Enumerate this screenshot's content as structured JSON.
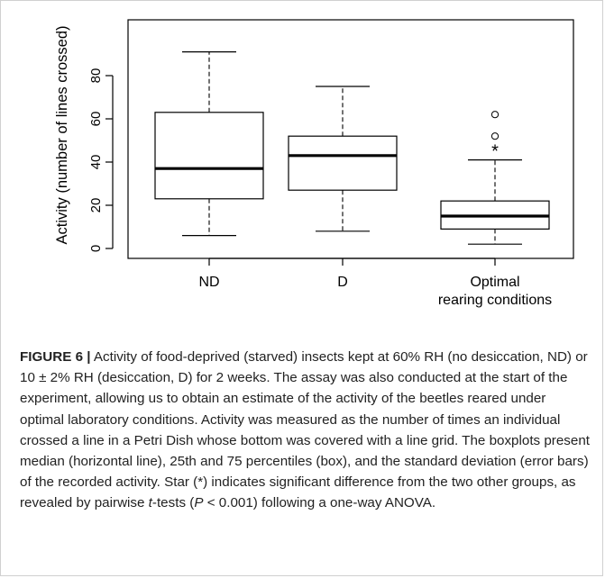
{
  "chart_data": {
    "type": "boxplot",
    "ylabel": "Activity (number of lines crossed)",
    "ylim": [
      0,
      95
    ],
    "yticks": [
      0,
      20,
      40,
      60,
      80
    ],
    "categories": [
      "ND",
      "D",
      "Optimal rearing conditions"
    ],
    "category_lines": [
      [
        "ND"
      ],
      [
        "D"
      ],
      [
        "Optimal",
        "rearing conditions"
      ]
    ],
    "boxes": [
      {
        "category": "ND",
        "whisker_low": 6,
        "q1": 23,
        "median": 37,
        "q3": 63,
        "whisker_high": 91,
        "outliers": []
      },
      {
        "category": "D",
        "whisker_low": 8,
        "q1": 27,
        "median": 43,
        "q3": 52,
        "whisker_high": 75,
        "outliers": []
      },
      {
        "category": "Optimal rearing conditions",
        "whisker_low": 2,
        "q1": 9,
        "median": 15,
        "q3": 22,
        "whisker_high": 41,
        "outliers": [
          52,
          62
        ]
      }
    ],
    "annotations": [
      {
        "category": "Optimal rearing conditions",
        "text": "*",
        "y": 46
      }
    ],
    "grid": false,
    "legend": null
  },
  "caption": {
    "label": "FIGURE 6 |",
    "body1": " Activity of food-deprived (starved) insects kept at 60% RH (no desiccation, ND) or 10 ± 2% RH (desiccation, D) for 2 weeks. The assay was also conducted at the start of the experiment, allowing us to obtain an estimate of the activity of the beetles reared under optimal laboratory conditions. Activity was measured as the number of times an individual crossed a line in a Petri Dish whose bottom was covered with a line grid. The boxplots present median (horizontal line), 25th and 75 percentiles (box), and the standard deviation (error bars) of the recorded activity. Star (*) indicates significant difference from the two other groups, as revealed by pairwise ",
    "t_italic": "t",
    "body2": "-tests (",
    "p_italic": "P",
    "body3": " < 0.001) following a one-way ANOVA."
  }
}
